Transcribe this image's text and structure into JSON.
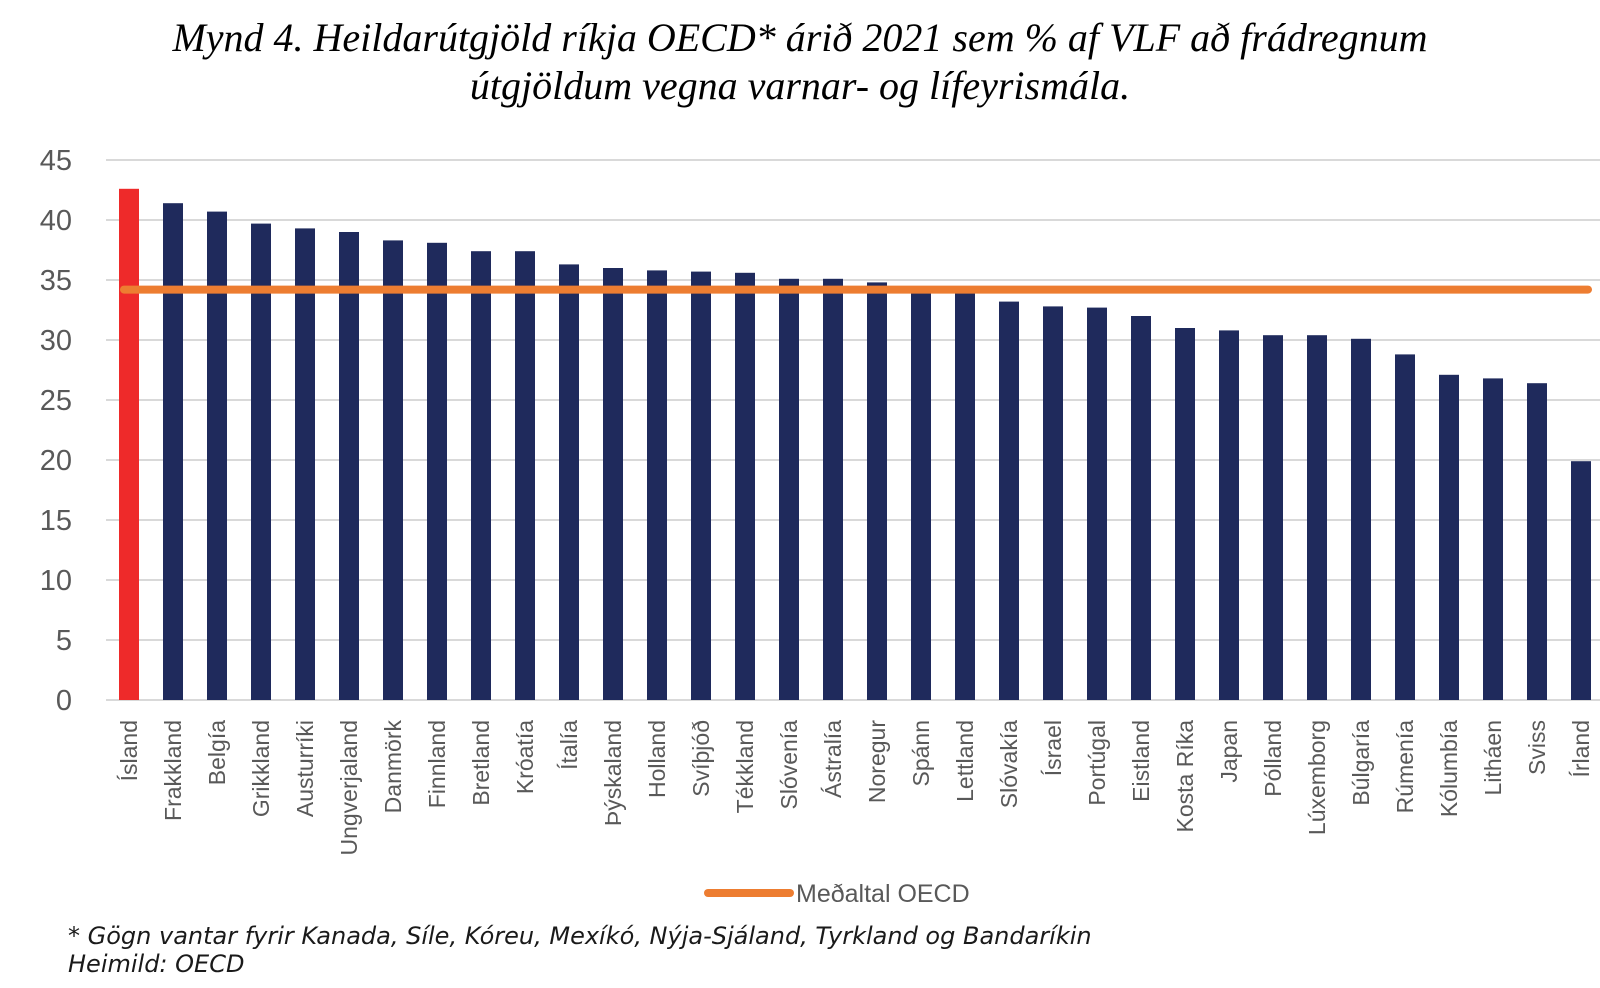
{
  "title": {
    "line1": "Mynd 4. Heildarútgjöld ríkja OECD* árið 2021 sem % af VLF að frádregnum",
    "line2": "útgjöldum vegna varnar- og lífeyrismála."
  },
  "footnote": "* Gögn vantar fyrir Kanada, Síle, Kóreu, Mexíkó, Nýja-Sjáland, Tyrkland og Bandaríkin",
  "source": "Heimild: OECD",
  "colors": {
    "bar": "#1f2a5c",
    "highlight": "#ee2a2a",
    "average_line": "#ed7d31",
    "grid": "#d9d9d9"
  },
  "chart_data": {
    "type": "bar",
    "title": "Mynd 4. Heildarútgjöld ríkja OECD* árið 2021 sem % af VLF að frádregnum útgjöldum vegna varnar- og lífeyrismála.",
    "ylim": [
      0,
      45
    ],
    "yticks": [
      0,
      5,
      10,
      15,
      20,
      25,
      30,
      35,
      40,
      45
    ],
    "grid": true,
    "legend_position": "bottom",
    "categories": [
      "Ísland",
      "Frakkland",
      "Belgía",
      "Grikkland",
      "Austurríki",
      "Ungverjaland",
      "Danmörk",
      "Finnland",
      "Bretland",
      "Króatía",
      "Ítalía",
      "Þýskaland",
      "Holland",
      "Svíþjóð",
      "Tékkland",
      "Slóvenía",
      "Ástralía",
      "Noregur",
      "Spánn",
      "Lettland",
      "Slóvakía",
      "Ísrael",
      "Portúgal",
      "Eistland",
      "Kosta Ríka",
      "Japan",
      "Pólland",
      "Lúxemborg",
      "Búlgaría",
      "Rúmenía",
      "Kólumbía",
      "Litháen",
      "Sviss",
      "Írland"
    ],
    "values": [
      42.6,
      41.4,
      40.7,
      39.7,
      39.3,
      39.0,
      38.3,
      38.1,
      37.4,
      37.4,
      36.3,
      36.0,
      35.8,
      35.7,
      35.6,
      35.1,
      35.1,
      34.8,
      34.0,
      34.0,
      33.2,
      32.8,
      32.7,
      32.0,
      31.0,
      30.8,
      30.4,
      30.4,
      30.1,
      28.8,
      27.1,
      26.8,
      26.4,
      19.9
    ],
    "highlight_category": "Ísland",
    "average": {
      "name": "Meðaltal OECD",
      "value": 34.2
    }
  }
}
